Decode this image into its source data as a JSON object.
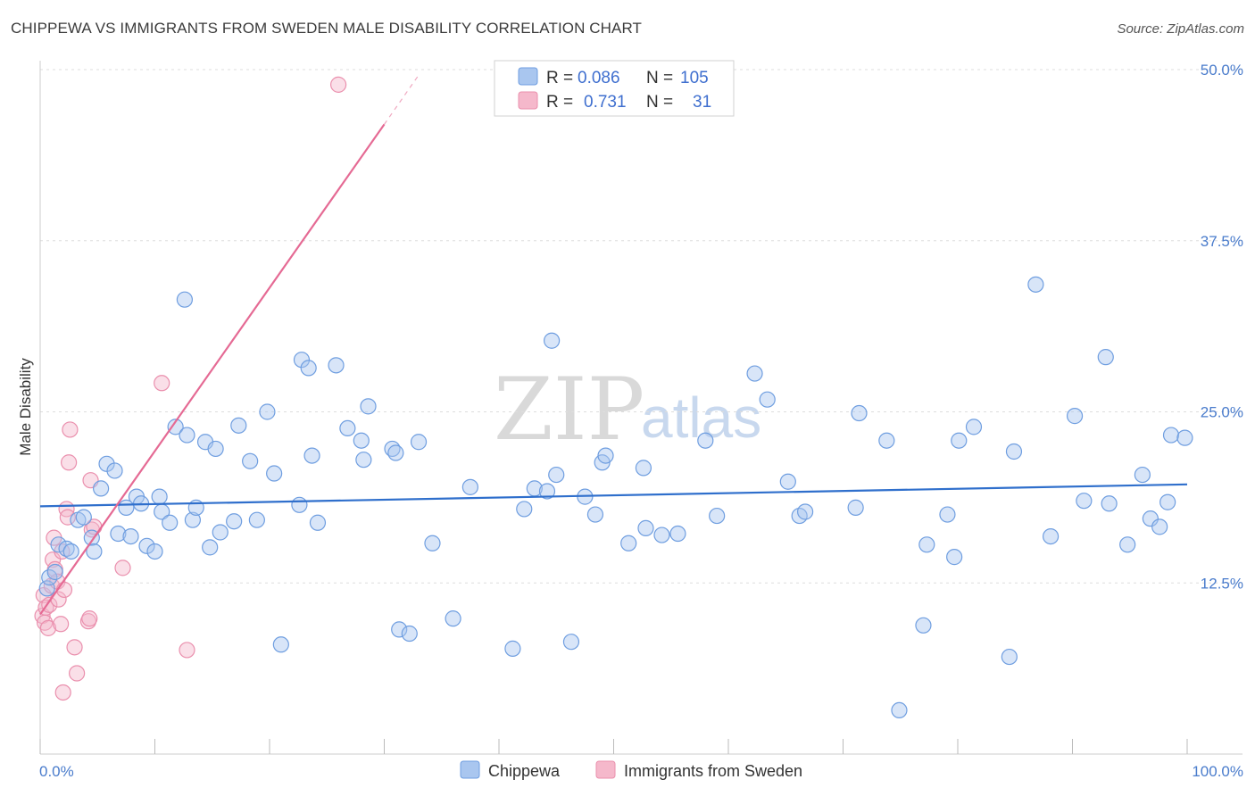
{
  "header": {
    "title": "CHIPPEWA VS IMMIGRANTS FROM SWEDEN MALE DISABILITY CORRELATION CHART",
    "source": "Source: ZipAtlas.com"
  },
  "watermark": {
    "zip": "ZIP",
    "atlas": "atlas"
  },
  "legend": {
    "rows": [
      {
        "r_label": "R =",
        "r_value": "0.086",
        "n_label": "N =",
        "n_value": "105"
      },
      {
        "r_label": "R =",
        "r_value": "0.731",
        "n_label": "N =",
        "n_value": "31"
      }
    ]
  },
  "bottom_legend": {
    "chippewa": "Chippewa",
    "sweden": "Immigrants from Sweden"
  },
  "colors": {
    "blue_fill": "#a9c6ef",
    "blue_stroke": "#6f9ee0",
    "blue_line": "#2f6fcc",
    "pink_fill": "#f5b8cb",
    "pink_stroke": "#ea8fad",
    "pink_line": "#e56a94",
    "grid": "#dddddd",
    "tick_text": "#4a7ccc"
  },
  "chart_data": {
    "type": "scatter",
    "title": "CHIPPEWA VS IMMIGRANTS FROM SWEDEN MALE DISABILITY CORRELATION CHART",
    "xlabel": "",
    "ylabel": "Male Disability",
    "xlim": [
      0,
      100
    ],
    "ylim": [
      0,
      50
    ],
    "x_tick_labels": [
      "0.0%",
      "100.0%"
    ],
    "y_ticks": [
      12.5,
      25.0,
      37.5,
      50.0
    ],
    "y_tick_labels": [
      "12.5%",
      "25.0%",
      "37.5%",
      "50.0%"
    ],
    "series": [
      {
        "name": "Chippewa",
        "R": 0.086,
        "N": 105,
        "trend": {
          "x": [
            0,
            100
          ],
          "y": [
            18.1,
            19.7
          ]
        },
        "points": [
          [
            0.6,
            12.1
          ],
          [
            0.8,
            12.9
          ],
          [
            1.3,
            13.3
          ],
          [
            1.6,
            15.3
          ],
          [
            2.3,
            15.0
          ],
          [
            2.7,
            14.8
          ],
          [
            3.3,
            17.1
          ],
          [
            3.8,
            17.3
          ],
          [
            4.5,
            15.8
          ],
          [
            4.7,
            14.8
          ],
          [
            5.3,
            19.4
          ],
          [
            5.8,
            21.2
          ],
          [
            6.5,
            20.7
          ],
          [
            6.8,
            16.1
          ],
          [
            7.5,
            18.0
          ],
          [
            7.9,
            15.9
          ],
          [
            8.4,
            18.8
          ],
          [
            8.8,
            18.3
          ],
          [
            9.3,
            15.2
          ],
          [
            10.0,
            14.8
          ],
          [
            10.4,
            18.8
          ],
          [
            10.6,
            17.7
          ],
          [
            11.3,
            16.9
          ],
          [
            11.8,
            23.9
          ],
          [
            12.6,
            33.2
          ],
          [
            12.8,
            23.3
          ],
          [
            13.3,
            17.1
          ],
          [
            13.6,
            18.0
          ],
          [
            14.4,
            22.8
          ],
          [
            14.8,
            15.1
          ],
          [
            15.3,
            22.3
          ],
          [
            15.7,
            16.2
          ],
          [
            16.9,
            17.0
          ],
          [
            17.3,
            24.0
          ],
          [
            18.3,
            21.4
          ],
          [
            18.9,
            17.1
          ],
          [
            19.8,
            25.0
          ],
          [
            20.4,
            20.5
          ],
          [
            21.0,
            8.0
          ],
          [
            22.6,
            18.2
          ],
          [
            22.8,
            28.8
          ],
          [
            23.4,
            28.2
          ],
          [
            23.7,
            21.8
          ],
          [
            24.2,
            16.9
          ],
          [
            25.8,
            28.4
          ],
          [
            26.8,
            23.8
          ],
          [
            28.0,
            22.9
          ],
          [
            28.2,
            21.5
          ],
          [
            28.6,
            25.4
          ],
          [
            30.7,
            22.3
          ],
          [
            31.0,
            22.0
          ],
          [
            31.3,
            9.1
          ],
          [
            32.2,
            8.8
          ],
          [
            33.0,
            22.8
          ],
          [
            34.2,
            15.4
          ],
          [
            36.0,
            9.9
          ],
          [
            37.5,
            19.5
          ],
          [
            41.2,
            7.7
          ],
          [
            42.2,
            17.9
          ],
          [
            43.1,
            19.4
          ],
          [
            44.2,
            19.2
          ],
          [
            44.6,
            30.2
          ],
          [
            45.0,
            20.4
          ],
          [
            46.3,
            8.2
          ],
          [
            47.5,
            18.8
          ],
          [
            48.4,
            17.5
          ],
          [
            49.0,
            21.3
          ],
          [
            49.3,
            21.8
          ],
          [
            51.3,
            15.4
          ],
          [
            52.6,
            20.9
          ],
          [
            52.8,
            16.5
          ],
          [
            54.2,
            16.0
          ],
          [
            55.6,
            16.1
          ],
          [
            58.0,
            22.9
          ],
          [
            59.0,
            17.4
          ],
          [
            62.3,
            27.8
          ],
          [
            63.4,
            25.9
          ],
          [
            65.2,
            19.9
          ],
          [
            66.2,
            17.4
          ],
          [
            66.7,
            17.7
          ],
          [
            71.1,
            18.0
          ],
          [
            71.4,
            24.9
          ],
          [
            73.8,
            22.9
          ],
          [
            74.9,
            3.2
          ],
          [
            77.0,
            9.4
          ],
          [
            77.3,
            15.3
          ],
          [
            79.1,
            17.5
          ],
          [
            79.7,
            14.4
          ],
          [
            80.1,
            22.9
          ],
          [
            81.4,
            23.9
          ],
          [
            84.5,
            7.1
          ],
          [
            84.9,
            22.1
          ],
          [
            86.8,
            34.3
          ],
          [
            88.1,
            15.9
          ],
          [
            90.2,
            24.7
          ],
          [
            91.0,
            18.5
          ],
          [
            92.9,
            29.0
          ],
          [
            93.2,
            18.3
          ],
          [
            94.8,
            15.3
          ],
          [
            96.1,
            20.4
          ],
          [
            96.8,
            17.2
          ],
          [
            97.6,
            16.6
          ],
          [
            98.3,
            18.4
          ],
          [
            98.6,
            23.3
          ],
          [
            99.8,
            23.1
          ]
        ]
      },
      {
        "name": "Immigrants from Sweden",
        "R": 0.731,
        "N": 31,
        "trend": {
          "x": [
            0,
            30
          ],
          "y": [
            10.2,
            46.0
          ]
        },
        "trend_dashed": {
          "x": [
            30,
            33
          ],
          "y": [
            46.0,
            49.6
          ]
        },
        "points": [
          [
            0.2,
            10.1
          ],
          [
            0.3,
            11.6
          ],
          [
            0.4,
            9.6
          ],
          [
            0.5,
            10.7
          ],
          [
            0.7,
            9.2
          ],
          [
            0.8,
            10.9
          ],
          [
            1.0,
            12.3
          ],
          [
            1.1,
            14.2
          ],
          [
            1.2,
            15.8
          ],
          [
            1.3,
            13.5
          ],
          [
            1.5,
            12.6
          ],
          [
            1.6,
            11.3
          ],
          [
            1.8,
            9.5
          ],
          [
            1.9,
            14.8
          ],
          [
            2.0,
            4.5
          ],
          [
            2.1,
            12.0
          ],
          [
            2.3,
            17.9
          ],
          [
            2.4,
            17.3
          ],
          [
            2.5,
            21.3
          ],
          [
            2.6,
            23.7
          ],
          [
            3.0,
            7.8
          ],
          [
            3.2,
            5.9
          ],
          [
            4.2,
            9.7
          ],
          [
            4.3,
            9.9
          ],
          [
            4.4,
            20.0
          ],
          [
            4.5,
            16.4
          ],
          [
            4.7,
            16.6
          ],
          [
            7.2,
            13.6
          ],
          [
            10.6,
            27.1
          ],
          [
            12.8,
            7.6
          ],
          [
            26.0,
            48.9
          ]
        ]
      }
    ]
  }
}
